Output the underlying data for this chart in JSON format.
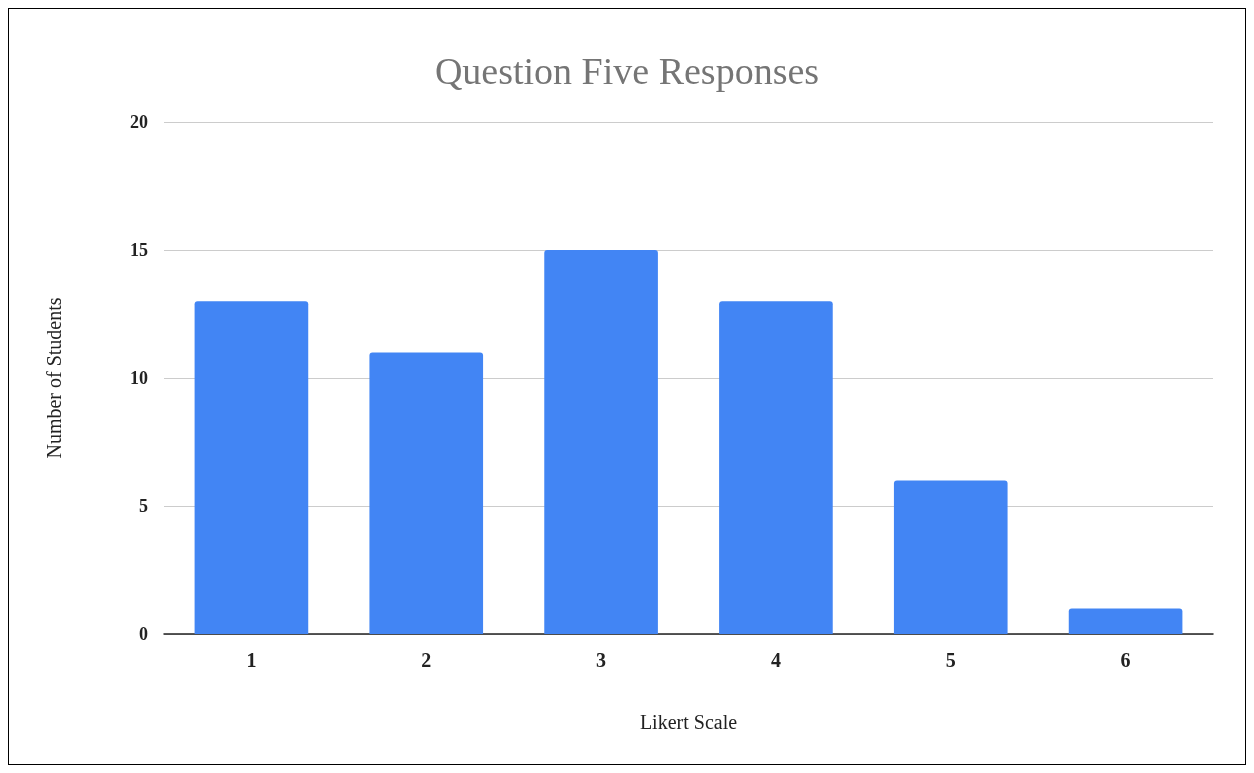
{
  "chart_data": {
    "type": "bar",
    "title": "Question Five Responses",
    "xlabel": "Likert Scale",
    "ylabel": "Number of Students",
    "categories": [
      "1",
      "2",
      "3",
      "4",
      "5",
      "6"
    ],
    "values": [
      13,
      11,
      15,
      13,
      6,
      1
    ],
    "color": "#4285f4",
    "ylim": [
      0,
      20
    ],
    "yticks": [
      0,
      5,
      10,
      15,
      20
    ],
    "grid": "y"
  }
}
